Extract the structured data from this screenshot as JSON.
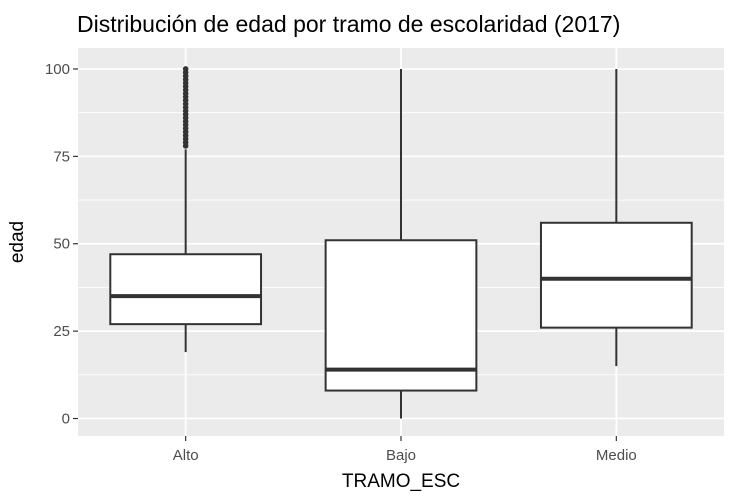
{
  "chart_data": {
    "type": "boxplot",
    "title": "Distribución de edad por tramo de escolaridad (2017)",
    "xlabel": "TRAMO_ESC",
    "ylabel": "edad",
    "categories": [
      "Alto",
      "Bajo",
      "Medio"
    ],
    "ylim": [
      -5,
      106
    ],
    "yticks": [
      0,
      25,
      50,
      75,
      100
    ],
    "grid": true,
    "legend": "none",
    "colors": {
      "panel_background": "#ebebeb",
      "grid_line": "#ffffff",
      "box_fill": "#ffffff",
      "box_stroke": "#333333",
      "tick_text": "#4d4d4d"
    },
    "boxes": [
      {
        "category": "Alto",
        "whisker_low": 19,
        "q1": 27,
        "median": 35,
        "q3": 47,
        "whisker_high": 77,
        "outliers_range": [
          78,
          100
        ]
      },
      {
        "category": "Bajo",
        "whisker_low": 0,
        "q1": 8,
        "median": 14,
        "q3": 51,
        "whisker_high": 100,
        "outliers_range": null
      },
      {
        "category": "Medio",
        "whisker_low": 15,
        "q1": 26,
        "median": 40,
        "q3": 56,
        "whisker_high": 100,
        "outliers_range": null
      }
    ]
  }
}
